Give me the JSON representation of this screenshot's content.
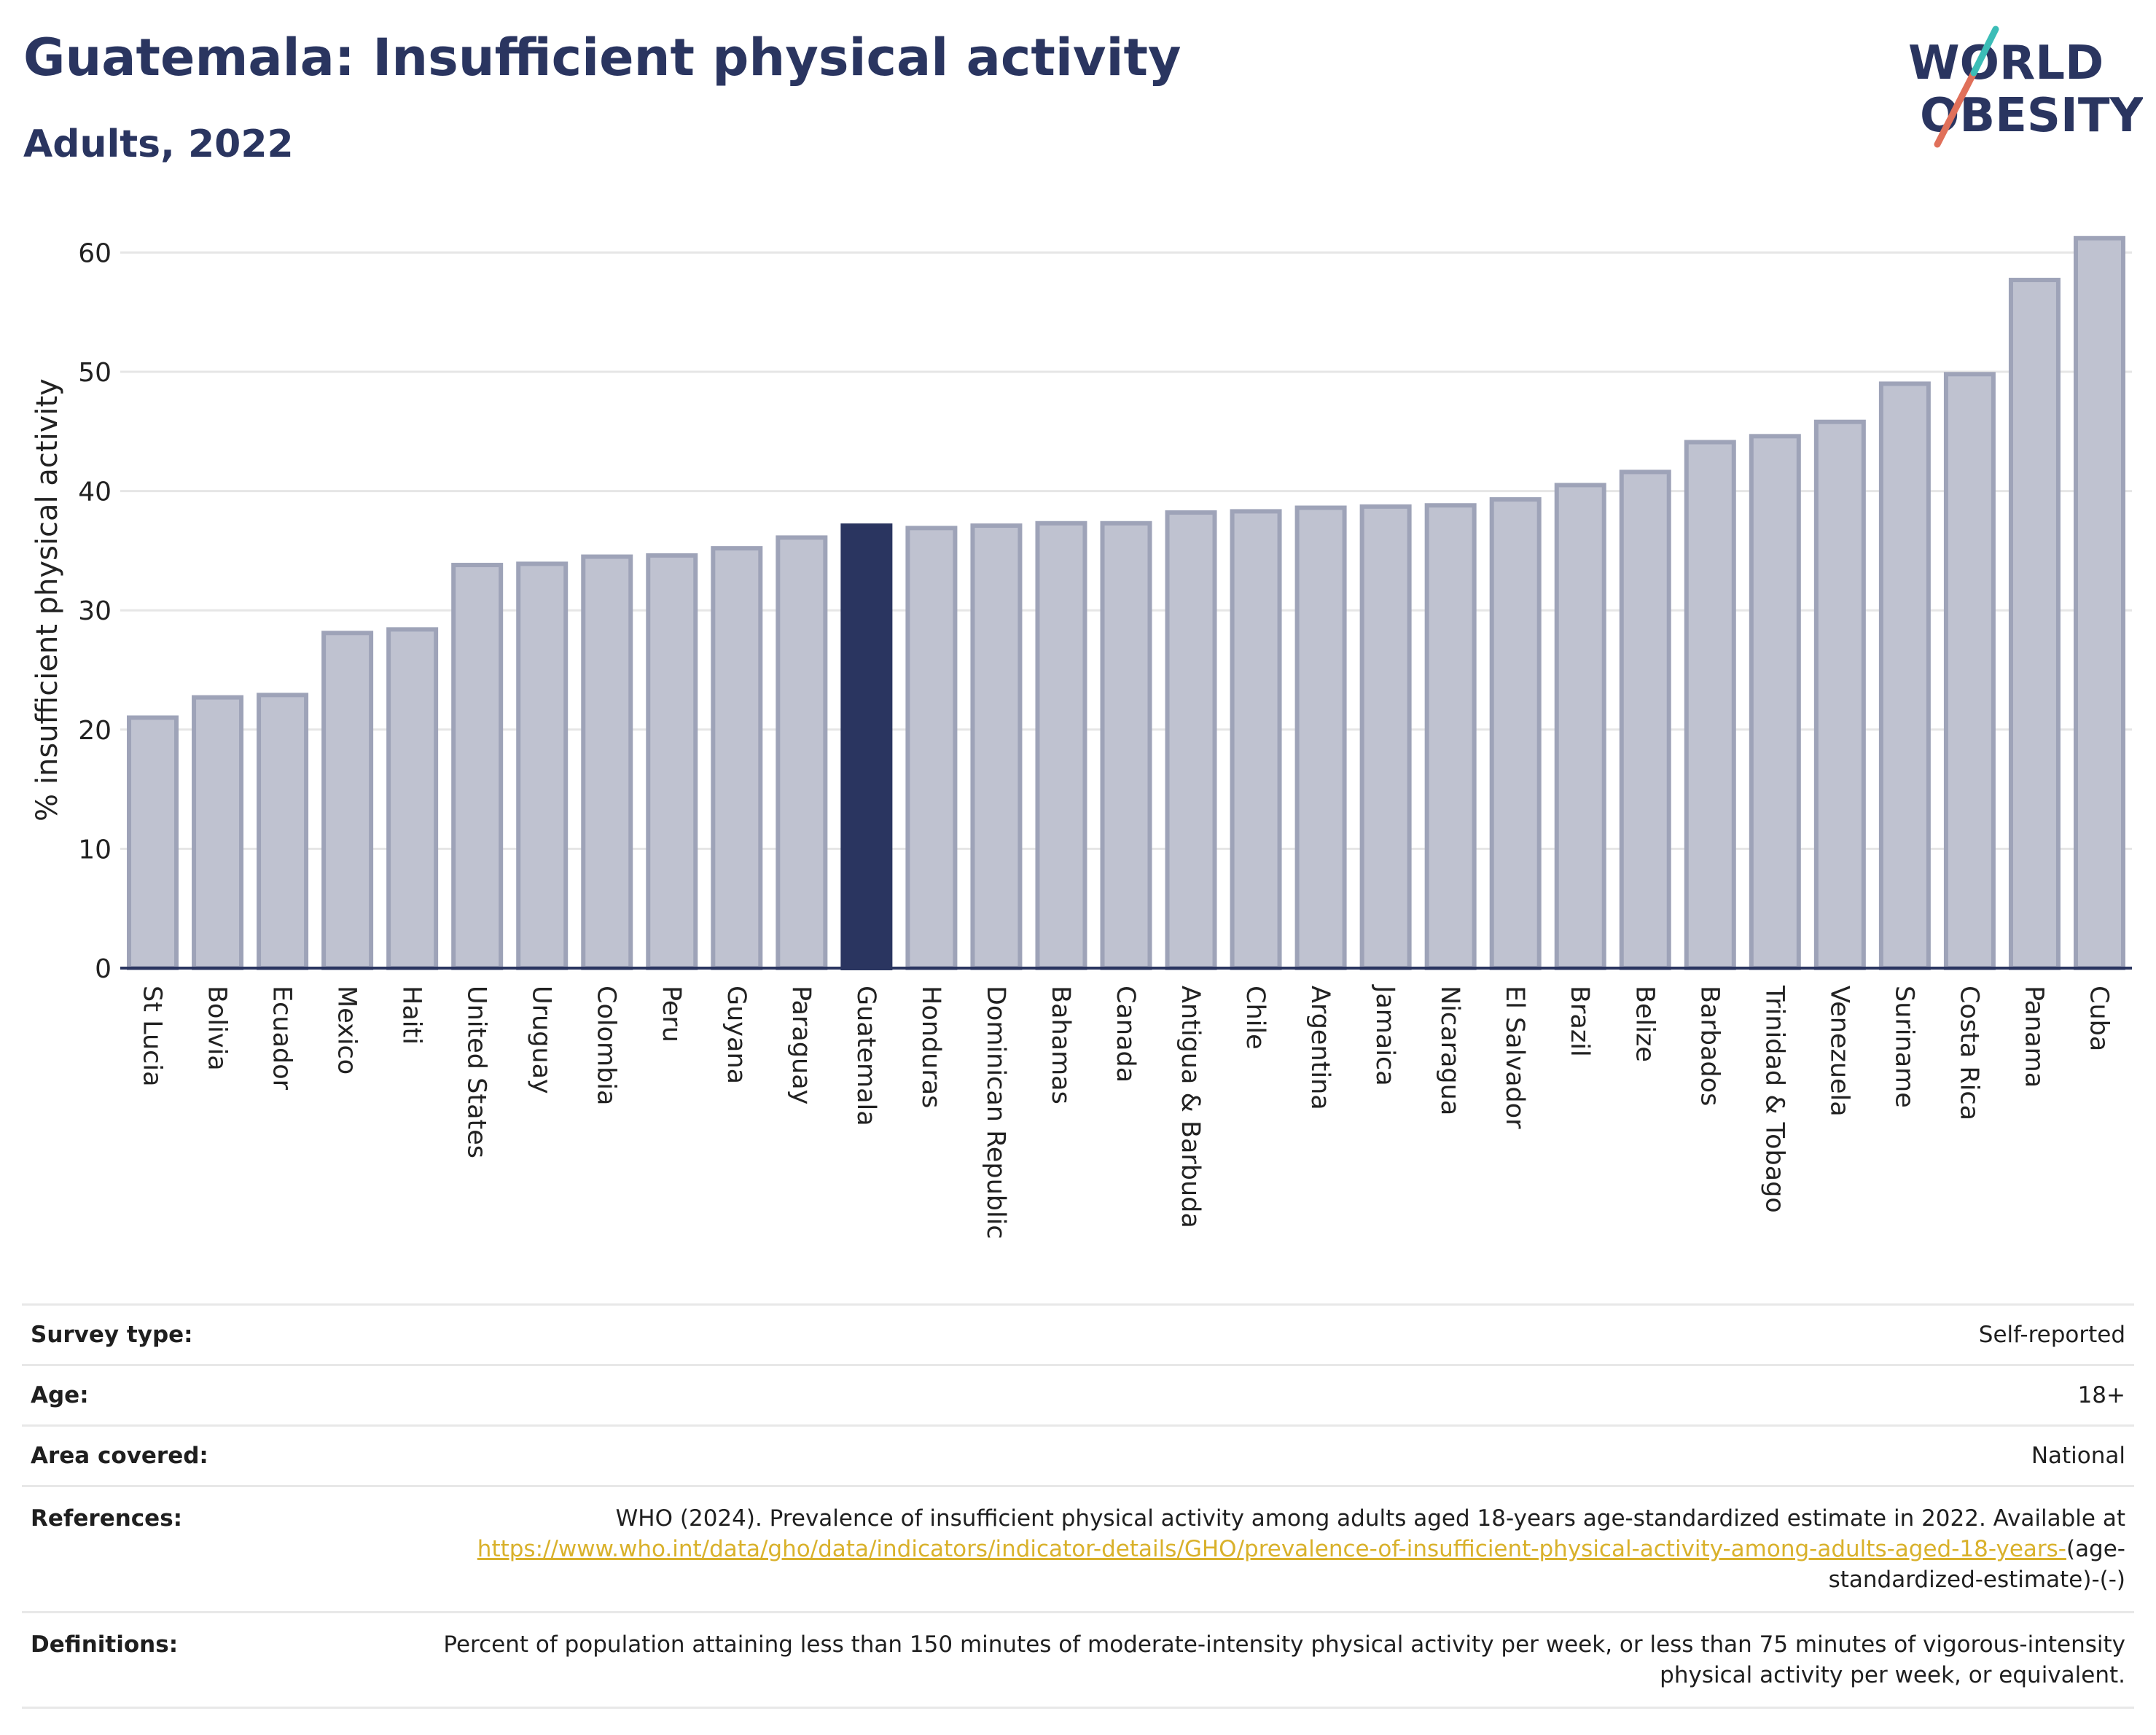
{
  "header": {
    "title": "Guatemala: Insufficient physical activity",
    "subtitle": "Adults, 2022"
  },
  "logo": {
    "line1": "WORLD",
    "line2": "OBESITY",
    "colors": [
      "#2a3560",
      "#e0705a",
      "#3bbdb7"
    ]
  },
  "colors": {
    "highlight": "#2a3560",
    "bar": "#bfc2d0",
    "bar_border": "#9ea3b8",
    "axis": "#2a3560",
    "grid": "#e6e6e6"
  },
  "chart_data": {
    "type": "bar",
    "title": "Guatemala: Insufficient physical activity",
    "subtitle": "Adults, 2022",
    "ylabel": "% insufficient physical activity",
    "xlabel": "",
    "ylim": [
      0,
      62
    ],
    "yticks": [
      0,
      10,
      20,
      30,
      40,
      50,
      60
    ],
    "grid": true,
    "highlight": "Guatemala",
    "categories": [
      "St Lucia",
      "Bolivia",
      "Ecuador",
      "Mexico",
      "Haiti",
      "United States",
      "Uruguay",
      "Colombia",
      "Peru",
      "Guyana",
      "Paraguay",
      "Guatemala",
      "Honduras",
      "Dominican Republic",
      "Bahamas",
      "Canada",
      "Antigua & Barbuda",
      "Chile",
      "Argentina",
      "Jamaica",
      "Nicaragua",
      "El Salvador",
      "Brazil",
      "Belize",
      "Barbados",
      "Trinidad & Tobago",
      "Venezuela",
      "Suriname",
      "Costa Rica",
      "Panama",
      "Cuba"
    ],
    "values": [
      21.0,
      22.7,
      22.9,
      28.1,
      28.4,
      33.8,
      33.9,
      34.5,
      34.6,
      35.2,
      36.1,
      37.1,
      36.9,
      37.1,
      37.3,
      37.3,
      38.2,
      38.3,
      38.6,
      38.7,
      38.8,
      39.3,
      40.5,
      41.6,
      44.1,
      44.6,
      45.8,
      49.0,
      49.8,
      57.7,
      61.2
    ]
  },
  "meta": {
    "survey_type": {
      "label": "Survey type:",
      "value": "Self-reported"
    },
    "age": {
      "label": "Age:",
      "value": "18+"
    },
    "area": {
      "label": "Area covered:",
      "value": "National"
    },
    "references": {
      "label": "References:",
      "text": "WHO (2024). Prevalence of insufficient physical activity among adults aged 18-years age-standardized estimate in 2022. Available at ",
      "link": "https://www.who.int/data/gho/data/indicators/indicator-details/GHO/prevalence-of-insufficient-physical-activity-among-adults-aged-18-years-",
      "tail": "(age-standardized-estimate)-(-)"
    },
    "definitions": {
      "label": "Definitions:",
      "value": "Percent of population attaining less than 150 minutes of moderate-intensity physical activity per week, or less than 75 minutes of vigorous-intensity physical activity per week, or equivalent."
    }
  }
}
